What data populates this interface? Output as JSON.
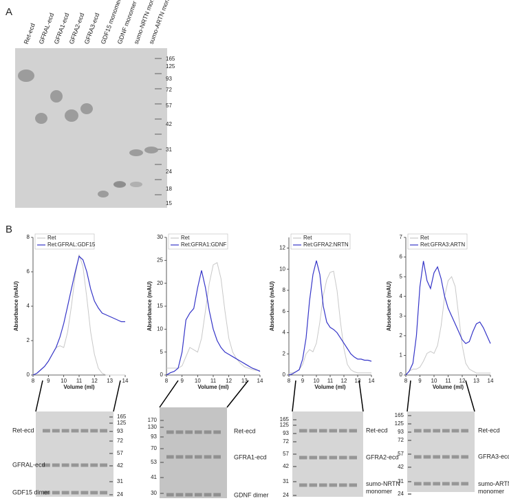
{
  "panel_a": {
    "label": "A",
    "lanes": [
      "Ret-ecd",
      "GFRAL-ecd",
      "GFRA1-ecd",
      "GFRA2-ecd",
      "GFRA3-ecd",
      "GDF15 monomer",
      "GDNF monomer",
      "sumo-NRTN monomer",
      "sumo-ARTN monomer"
    ],
    "markers": [
      "165",
      "125",
      "93",
      "72",
      "57",
      "42",
      "31",
      "24",
      "18",
      "15"
    ]
  },
  "panel_b": {
    "label": "B"
  },
  "chart_data": [
    {
      "type": "line",
      "xlabel": "Volume (ml)",
      "ylabel": "Absorbance (mAU)",
      "x": [
        8,
        8.25,
        8.5,
        8.75,
        9,
        9.25,
        9.5,
        9.75,
        10,
        10.25,
        10.5,
        10.75,
        11,
        11.25,
        11.5,
        11.75,
        12,
        12.25,
        12.5,
        12.75,
        13,
        13.25,
        13.5,
        13.75,
        14
      ],
      "xlim": [
        8,
        14
      ],
      "xticks": [
        8,
        9,
        10,
        11,
        12,
        13,
        14
      ],
      "ylim": [
        0,
        8
      ],
      "yticks": [
        0,
        2,
        4,
        6,
        8
      ],
      "series": [
        {
          "name": "Ret",
          "color": "#c8c8c8",
          "values": [
            0,
            0.1,
            0.3,
            0.5,
            0.8,
            1.2,
            1.6,
            1.7,
            1.6,
            2.5,
            4.0,
            5.8,
            7.0,
            6.3,
            4.5,
            2.5,
            1.2,
            0.4,
            0.1,
            0,
            0,
            0,
            0,
            0,
            0
          ]
        },
        {
          "name": "Ret:GFRAL:GDF15",
          "color": "#3434c8",
          "values": [
            0,
            0.1,
            0.3,
            0.5,
            0.8,
            1.2,
            1.6,
            2.2,
            3.0,
            4.0,
            5.0,
            6.0,
            6.9,
            6.7,
            6.0,
            5.0,
            4.3,
            3.9,
            3.6,
            3.5,
            3.4,
            3.3,
            3.2,
            3.1,
            3.1
          ]
        }
      ]
    },
    {
      "type": "line",
      "xlabel": "Volume (ml)",
      "ylabel": "Absorbance (mAU)",
      "x": [
        8,
        8.25,
        8.5,
        8.75,
        9,
        9.25,
        9.5,
        9.75,
        10,
        10.25,
        10.5,
        10.75,
        11,
        11.25,
        11.5,
        11.75,
        12,
        12.25,
        12.5,
        12.75,
        13,
        13.25,
        13.5,
        13.75,
        14
      ],
      "xlim": [
        8,
        14
      ],
      "xticks": [
        8,
        9,
        10,
        11,
        12,
        13,
        14
      ],
      "ylim": [
        0,
        30
      ],
      "yticks": [
        0,
        5,
        10,
        15,
        20,
        25,
        30
      ],
      "series": [
        {
          "name": "Ret",
          "color": "#c8c8c8",
          "values": [
            1.5,
            1.5,
            1.5,
            1.5,
            2,
            4,
            6,
            5.5,
            5,
            8,
            14,
            20,
            24,
            24.5,
            21,
            14,
            8,
            5,
            3.5,
            2.5,
            1.8,
            1.5,
            1.2,
            1,
            1
          ]
        },
        {
          "name": "Ret:GFRA1:GDNF",
          "color": "#3434c8",
          "values": [
            0,
            0.5,
            0.8,
            1.5,
            5,
            12,
            13.5,
            14.5,
            19,
            22.8,
            19,
            14,
            10,
            7.5,
            6,
            5,
            4.5,
            4,
            3.5,
            3,
            2.5,
            2,
            1.5,
            1.2,
            0.8
          ]
        }
      ]
    },
    {
      "type": "line",
      "xlabel": "Volume (ml)",
      "ylabel": "Absorbance (mAU)",
      "x": [
        8,
        8.25,
        8.5,
        8.75,
        9,
        9.25,
        9.5,
        9.75,
        10,
        10.25,
        10.5,
        10.75,
        11,
        11.25,
        11.5,
        11.75,
        12,
        12.25,
        12.5,
        12.75,
        13,
        13.25,
        13.5,
        13.75,
        14
      ],
      "xlim": [
        8,
        14
      ],
      "xticks": [
        8,
        9,
        10,
        11,
        12,
        13,
        14
      ],
      "ylim": [
        0,
        13
      ],
      "yticks": [
        0,
        2,
        4,
        6,
        8,
        10,
        12
      ],
      "series": [
        {
          "name": "Ret",
          "color": "#c8c8c8",
          "values": [
            0.2,
            0.2,
            0.3,
            0.5,
            1,
            2,
            2.4,
            2.2,
            3,
            5,
            7.5,
            9,
            9.7,
            9.8,
            8,
            5,
            2.5,
            1,
            0.5,
            0.3,
            0.2,
            0.2,
            0.2,
            0.2,
            0.2
          ]
        },
        {
          "name": "Ret:GFRA2:NRTN",
          "color": "#3434c8",
          "values": [
            0,
            0.1,
            0.3,
            0.5,
            1.5,
            3.5,
            7,
            9.5,
            10.8,
            9.5,
            6.5,
            5,
            4.5,
            4.3,
            4,
            3.5,
            3,
            2.5,
            2,
            1.7,
            1.5,
            1.5,
            1.4,
            1.4,
            1.3
          ]
        }
      ]
    },
    {
      "type": "line",
      "xlabel": "Volume (ml)",
      "ylabel": "Absorbance (mAU)",
      "x": [
        8,
        8.25,
        8.5,
        8.75,
        9,
        9.25,
        9.5,
        9.75,
        10,
        10.25,
        10.5,
        10.75,
        11,
        11.25,
        11.5,
        11.75,
        12,
        12.25,
        12.5,
        12.75,
        13,
        13.25,
        13.5,
        13.75,
        14
      ],
      "xlim": [
        8,
        14
      ],
      "xticks": [
        8,
        9,
        10,
        11,
        12,
        13,
        14
      ],
      "ylim": [
        0,
        7
      ],
      "yticks": [
        0,
        1,
        2,
        3,
        4,
        5,
        6,
        7
      ],
      "series": [
        {
          "name": "Ret",
          "color": "#c8c8c8",
          "values": [
            0,
            0.2,
            0.3,
            0.3,
            0.4,
            0.7,
            1.1,
            1.2,
            1.1,
            1.5,
            2.5,
            4,
            4.8,
            5,
            4.5,
            3,
            1.5,
            0.6,
            0.3,
            0.2,
            0.1,
            0.1,
            0.1,
            0.1,
            0.1
          ]
        },
        {
          "name": "Ret:GFRA3:ARTN",
          "color": "#3434c8",
          "values": [
            0,
            0.2,
            0.6,
            2,
            4.5,
            5.8,
            4.8,
            4.4,
            5.2,
            5.5,
            4.9,
            4,
            3.4,
            3,
            2.6,
            2.2,
            1.8,
            1.6,
            1.7,
            2.2,
            2.6,
            2.7,
            2.4,
            2,
            1.6
          ]
        }
      ]
    }
  ],
  "gels": [
    {
      "markers": [
        "165",
        "125",
        "93",
        "72",
        "57",
        "42",
        "31",
        "24"
      ],
      "bands": [
        [
          "Ret-ecd"
        ],
        [
          "GFRAL-ecd"
        ],
        [
          "GDF15 dimer"
        ]
      ]
    },
    {
      "markers": [
        "170",
        "130",
        "93",
        "70",
        "53",
        "41",
        "30"
      ],
      "bands": [
        [
          "Ret-ecd"
        ],
        [
          "GFRA1-ecd"
        ],
        [
          "GDNF dimer"
        ]
      ]
    },
    {
      "markers": [
        "165",
        "125",
        "93",
        "72",
        "57",
        "42",
        "31",
        "24"
      ],
      "bands": [
        [
          "Ret-ecd"
        ],
        [
          "GFRA2-ecd"
        ],
        [
          "sumo-NRTN",
          "monomer"
        ]
      ]
    },
    {
      "markers": [
        "165",
        "125",
        "93",
        "72",
        "57",
        "42",
        "31",
        "24"
      ],
      "bands": [
        [
          "Ret-ecd"
        ],
        [
          "GFRA3-ecd"
        ],
        [
          "sumo-ARTN",
          "monomer"
        ]
      ]
    }
  ]
}
